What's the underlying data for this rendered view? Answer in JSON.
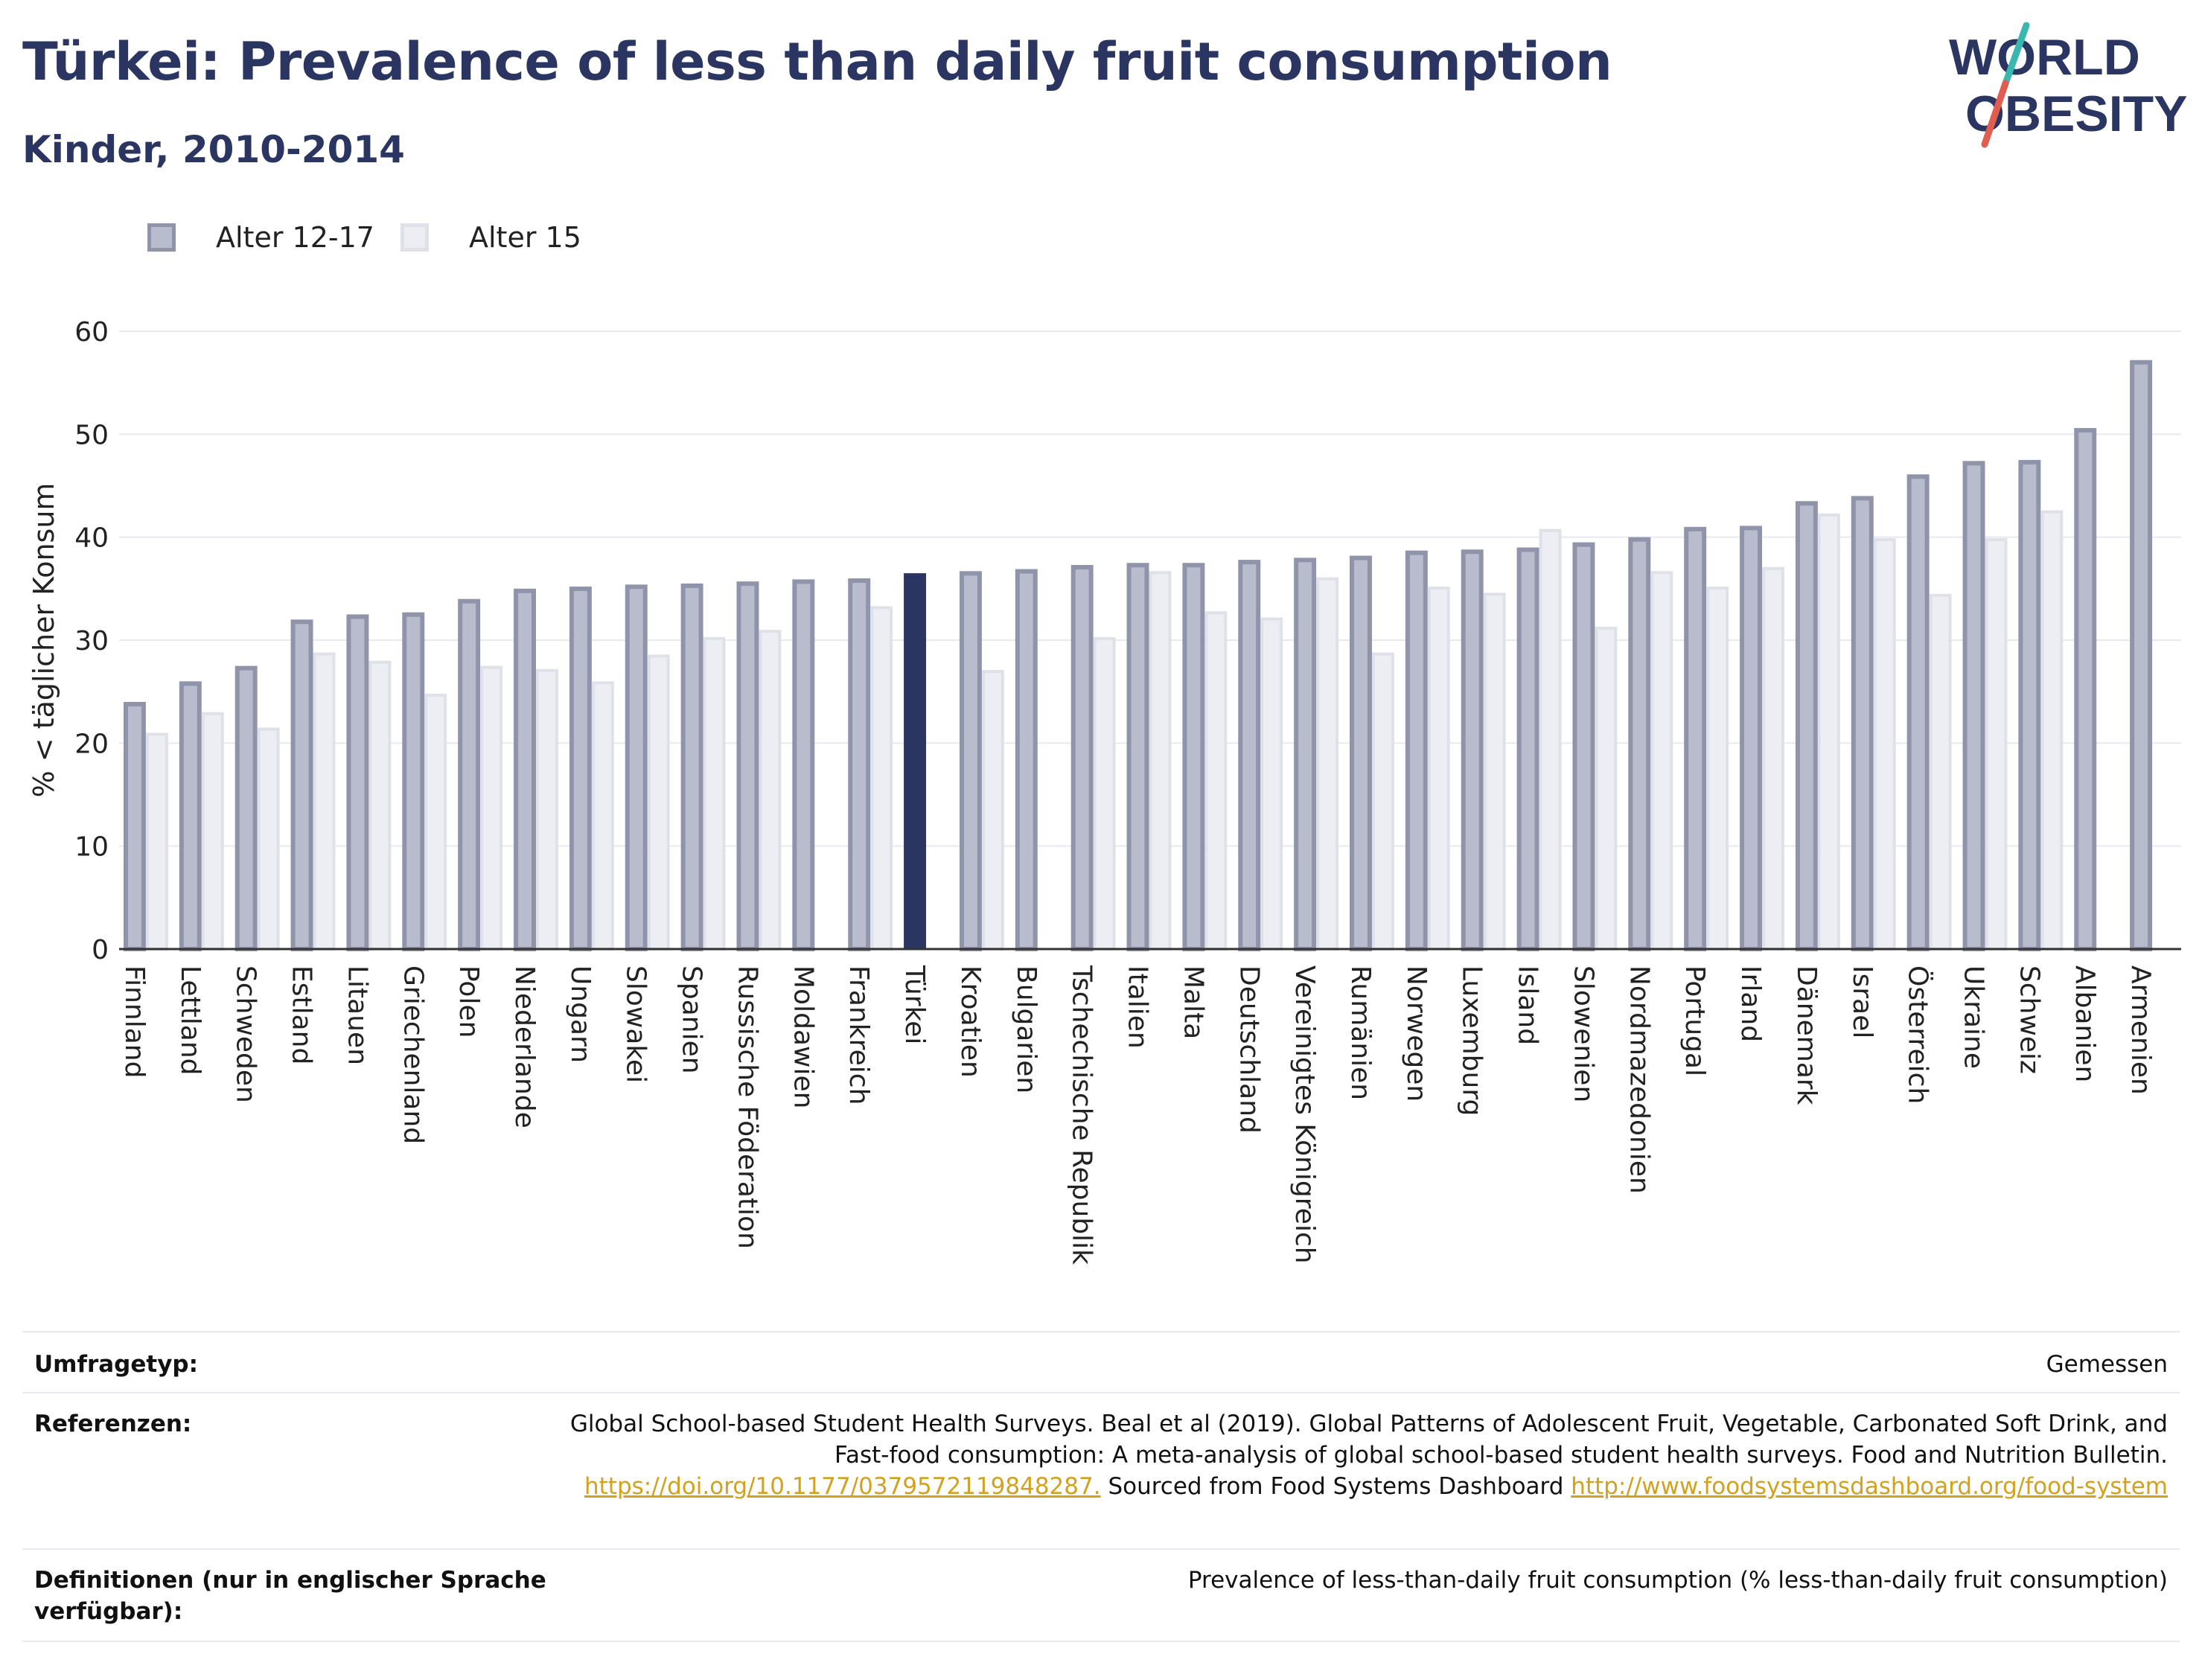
{
  "header": {
    "title": "Türkei: Prevalence of less than daily fruit consumption",
    "subtitle": "Kinder, 2010-2014"
  },
  "logo": {
    "line1": "WORLD",
    "line2": "OBESITY"
  },
  "legend": [
    {
      "label": "Alter 12-17"
    },
    {
      "label": "Alter 15"
    }
  ],
  "colors": {
    "series1": "#b9bccc",
    "series1_border": "#8f94ab",
    "series2": "#eceef3",
    "series2_border": "#dfe1e8",
    "highlight": "#2b3562",
    "grid": "#e6e9f0",
    "axis": "#333333",
    "link": "#d2a11e",
    "logo_text": "#2b3562",
    "logo_slash_top": "#3ab8b0",
    "logo_slash_bottom": "#e05e4f"
  },
  "chart_data": {
    "type": "bar",
    "ylabel": "% < täglicher Konsum",
    "ylim": [
      0,
      60
    ],
    "yticks": [
      0,
      10,
      20,
      30,
      40,
      50,
      60
    ],
    "grid": true,
    "legend_position": "top-left",
    "highlight_category": "Türkei",
    "categories": [
      "Finnland",
      "Lettland",
      "Schweden",
      "Estland",
      "Litauen",
      "Griechenland",
      "Polen",
      "Niederlande",
      "Ungarn",
      "Slowakei",
      "Spanien",
      "Russische Föderation",
      "Moldawien",
      "Frankreich",
      "Türkei",
      "Kroatien",
      "Bulgarien",
      "Tschechische Republik",
      "Italien",
      "Malta",
      "Deutschland",
      "Vereinigtes Königreich",
      "Rumänien",
      "Norwegen",
      "Luxemburg",
      "Island",
      "Slowenien",
      "Nordmazedonien",
      "Portugal",
      "Irland",
      "Dänemark",
      "Israel",
      "Österreich",
      "Ukraine",
      "Schweiz",
      "Albanien",
      "Armenien"
    ],
    "series": [
      {
        "name": "Alter 12-17",
        "values": [
          24,
          26,
          27.5,
          32,
          32.5,
          32.7,
          34,
          35,
          35.2,
          35.4,
          35.5,
          35.7,
          35.9,
          36,
          36.5,
          36.7,
          36.9,
          37.3,
          37.5,
          37.5,
          37.8,
          38,
          38.2,
          38.7,
          38.8,
          39,
          39.5,
          40,
          41,
          41.1,
          43.5,
          44,
          46.1,
          47.4,
          47.5,
          50.6,
          57.2
        ]
      },
      {
        "name": "Alter 15",
        "values": [
          21,
          23,
          21.5,
          28.8,
          28,
          24.8,
          27.5,
          27.2,
          26,
          28.6,
          30.3,
          31,
          null,
          33.3,
          null,
          27.1,
          null,
          30.3,
          36.7,
          32.8,
          32.2,
          36.1,
          28.8,
          35.2,
          34.6,
          40.8,
          31.3,
          36.7,
          35.2,
          37.1,
          42.3,
          39.9,
          34.5,
          39.9,
          42.6,
          null,
          null
        ]
      }
    ]
  },
  "meta": {
    "survey_type_label": "Umfragetyp:",
    "survey_type_value": "Gemessen",
    "references_label": "Referenzen:",
    "references_text1": "Global School-based Student Health Surveys. Beal et al (2019). Global Patterns of Adolescent Fruit, Vegetable, Carbonated Soft Drink, and Fast-food consumption: A meta-analysis of global school-based student health surveys. Food and Nutrition Bulletin.",
    "references_link1": "https://doi.org/10.1177/0379572119848287.",
    "references_text2": "Sourced from Food Systems Dashboard",
    "references_link2": "http://www.foodsystemsdashboard.org/food-system",
    "definitions_label": "Definitionen (nur in englischer Sprache verfügbar):",
    "definitions_value": "Prevalence of less-than-daily fruit consumption (% less-than-daily fruit consumption)"
  }
}
